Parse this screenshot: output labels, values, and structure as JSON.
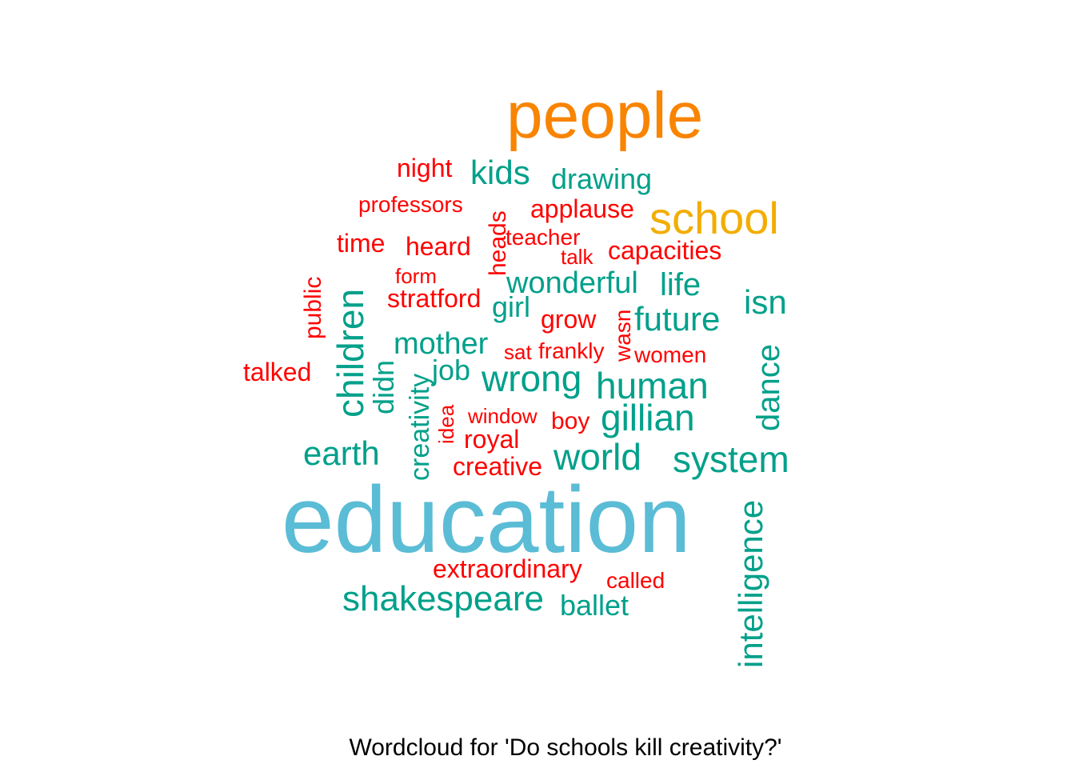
{
  "chart_data": {
    "type": "wordcloud",
    "caption": "Wordcloud for 'Do schools kill creativity?'",
    "colors": {
      "top1": "#5bbcd6",
      "top2": "#f98400",
      "top3": "#f2ad00",
      "mid": "#00a08a",
      "low": "#ff0000"
    },
    "words": [
      {
        "text": "education",
        "weight": 10,
        "color": "top1"
      },
      {
        "text": "people",
        "weight": 8,
        "color": "top2"
      },
      {
        "text": "school",
        "weight": 6,
        "color": "top3"
      },
      {
        "text": "intelligence",
        "weight": 4,
        "color": "mid"
      },
      {
        "text": "shakespeare",
        "weight": 4,
        "color": "mid"
      },
      {
        "text": "children",
        "weight": 4,
        "color": "mid"
      },
      {
        "text": "system",
        "weight": 4,
        "color": "mid"
      },
      {
        "text": "world",
        "weight": 4,
        "color": "mid"
      },
      {
        "text": "human",
        "weight": 4,
        "color": "mid"
      },
      {
        "text": "gillian",
        "weight": 4,
        "color": "mid"
      },
      {
        "text": "wrong",
        "weight": 4,
        "color": "mid"
      },
      {
        "text": "earth",
        "weight": 3,
        "color": "mid"
      },
      {
        "text": "future",
        "weight": 3,
        "color": "mid"
      },
      {
        "text": "isn",
        "weight": 3,
        "color": "mid"
      },
      {
        "text": "kids",
        "weight": 3,
        "color": "mid"
      },
      {
        "text": "dance",
        "weight": 3,
        "color": "mid"
      },
      {
        "text": "wonderful",
        "weight": 3,
        "color": "mid"
      },
      {
        "text": "life",
        "weight": 3,
        "color": "mid"
      },
      {
        "text": "mother",
        "weight": 3,
        "color": "mid"
      },
      {
        "text": "ballet",
        "weight": 3,
        "color": "mid"
      },
      {
        "text": "didn",
        "weight": 3,
        "color": "mid"
      },
      {
        "text": "drawing",
        "weight": 3,
        "color": "mid"
      },
      {
        "text": "creativity",
        "weight": 3,
        "color": "mid"
      },
      {
        "text": "job",
        "weight": 3,
        "color": "mid"
      },
      {
        "text": "girl",
        "weight": 3,
        "color": "mid"
      },
      {
        "text": "extraordinary",
        "weight": 2,
        "color": "low"
      },
      {
        "text": "creative",
        "weight": 2,
        "color": "low"
      },
      {
        "text": "applause",
        "weight": 2,
        "color": "low"
      },
      {
        "text": "capacities",
        "weight": 2,
        "color": "low"
      },
      {
        "text": "heard",
        "weight": 2,
        "color": "low"
      },
      {
        "text": "time",
        "weight": 2,
        "color": "low"
      },
      {
        "text": "stratford",
        "weight": 2,
        "color": "low"
      },
      {
        "text": "talked",
        "weight": 2,
        "color": "low"
      },
      {
        "text": "night",
        "weight": 2,
        "color": "low"
      },
      {
        "text": "heads",
        "weight": 2,
        "color": "low"
      },
      {
        "text": "public",
        "weight": 2,
        "color": "low"
      },
      {
        "text": "grow",
        "weight": 2,
        "color": "low"
      },
      {
        "text": "royal",
        "weight": 2,
        "color": "low"
      },
      {
        "text": "boy",
        "weight": 2,
        "color": "low"
      },
      {
        "text": "wasn",
        "weight": 2,
        "color": "low"
      },
      {
        "text": "professors",
        "weight": 1,
        "color": "low"
      },
      {
        "text": "teacher",
        "weight": 1,
        "color": "low"
      },
      {
        "text": "talk",
        "weight": 1,
        "color": "low"
      },
      {
        "text": "form",
        "weight": 1,
        "color": "low"
      },
      {
        "text": "window",
        "weight": 1,
        "color": "low"
      },
      {
        "text": "frankly",
        "weight": 1,
        "color": "low"
      },
      {
        "text": "women",
        "weight": 1,
        "color": "low"
      },
      {
        "text": "sat",
        "weight": 1,
        "color": "low"
      },
      {
        "text": "called",
        "weight": 1,
        "color": "low"
      },
      {
        "text": "idea",
        "weight": 1,
        "color": "low"
      }
    ]
  }
}
